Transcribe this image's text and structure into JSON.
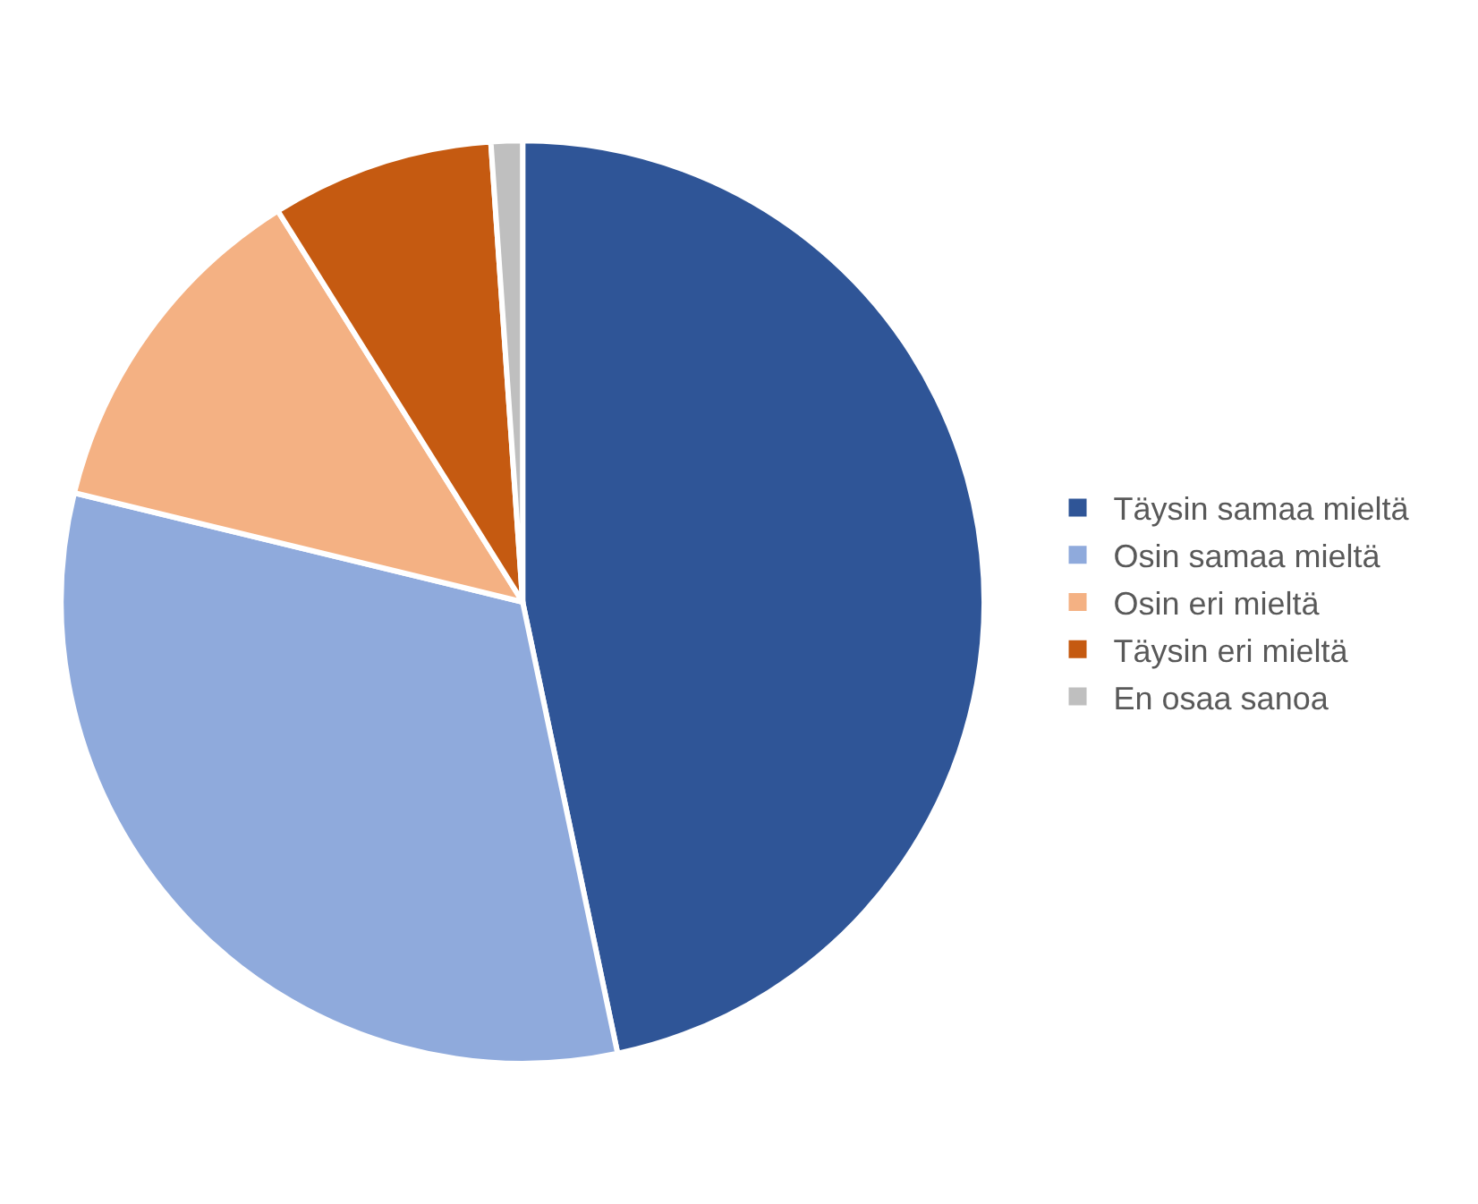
{
  "chart_data": {
    "type": "pie",
    "categories": [
      "Täysin samaa mieltä",
      "Osin samaa mieltä",
      "Osin eri mieltä",
      "Täysin eri mieltä",
      "En osaa sanoa"
    ],
    "values": [
      46.7,
      32.1,
      12.3,
      7.8,
      1.1
    ],
    "colors": [
      "#2f5597",
      "#8faadc",
      "#f4b183",
      "#c55a11",
      "#bfbfbf"
    ],
    "legend": "right"
  }
}
